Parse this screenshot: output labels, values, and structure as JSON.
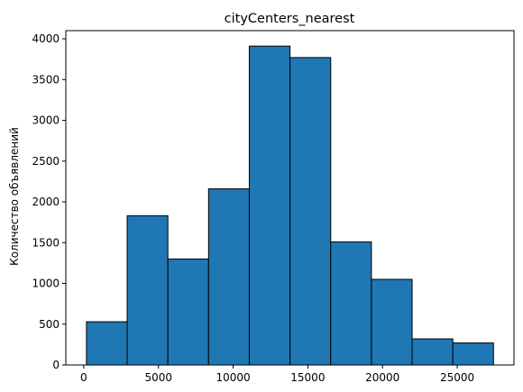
{
  "chart_data": {
    "type": "bar",
    "title": "cityCenters_nearest",
    "xlabel": "",
    "ylabel": "Количество объявлений",
    "bin_edges": [
      181,
      2906,
      5631,
      8356,
      11081,
      13806,
      16531,
      19256,
      21981,
      24706,
      27431
    ],
    "values": [
      530,
      1830,
      1300,
      2160,
      3910,
      3770,
      1510,
      1050,
      320,
      270
    ],
    "xlim": [
      -1200,
      28800
    ],
    "ylim": [
      0,
      4100
    ],
    "xticks": [
      0,
      5000,
      10000,
      15000,
      20000,
      25000
    ],
    "yticks": [
      0,
      500,
      1000,
      1500,
      2000,
      2500,
      3000,
      3500,
      4000
    ],
    "bar_color": "#1f77b4",
    "edge_color": "#000000",
    "grid": false
  }
}
